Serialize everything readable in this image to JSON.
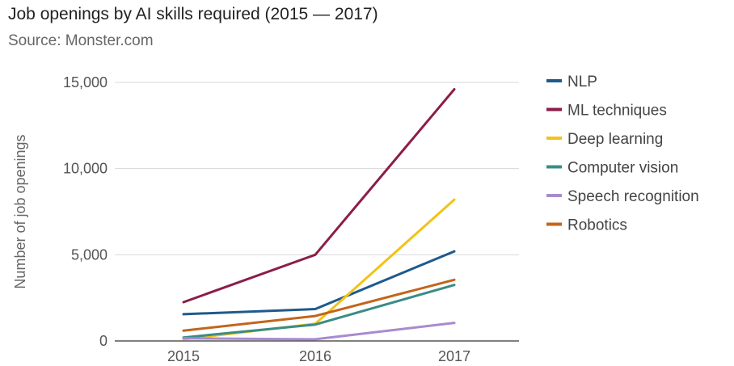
{
  "chart_data": {
    "type": "line",
    "title": "Job openings by AI skills required (2015 — 2017)",
    "subtitle": "Source: Monster.com",
    "xlabel": "",
    "ylabel": "Number of job openings",
    "x": [
      "2015",
      "2016",
      "2017"
    ],
    "ylim": [
      0,
      15000
    ],
    "yticks": [
      0,
      5000,
      10000,
      15000
    ],
    "ytick_labels": [
      "0",
      "5,000",
      "10,000",
      "15,000"
    ],
    "grid": true,
    "legend_position": "right",
    "series": [
      {
        "name": "NLP",
        "color": "#1f5a8c",
        "values": [
          1550,
          1850,
          5200
        ]
      },
      {
        "name": "ML techniques",
        "color": "#8c1d4a",
        "values": [
          2250,
          5000,
          14600
        ]
      },
      {
        "name": "Deep learning",
        "color": "#f2c318",
        "values": [
          100,
          1000,
          8200
        ]
      },
      {
        "name": "Computer vision",
        "color": "#3a8c86",
        "values": [
          200,
          950,
          3250
        ]
      },
      {
        "name": "Speech recognition",
        "color": "#a98ad0",
        "values": [
          150,
          100,
          1050
        ]
      },
      {
        "name": "Robotics",
        "color": "#c2651c",
        "values": [
          600,
          1450,
          3550
        ]
      }
    ]
  }
}
